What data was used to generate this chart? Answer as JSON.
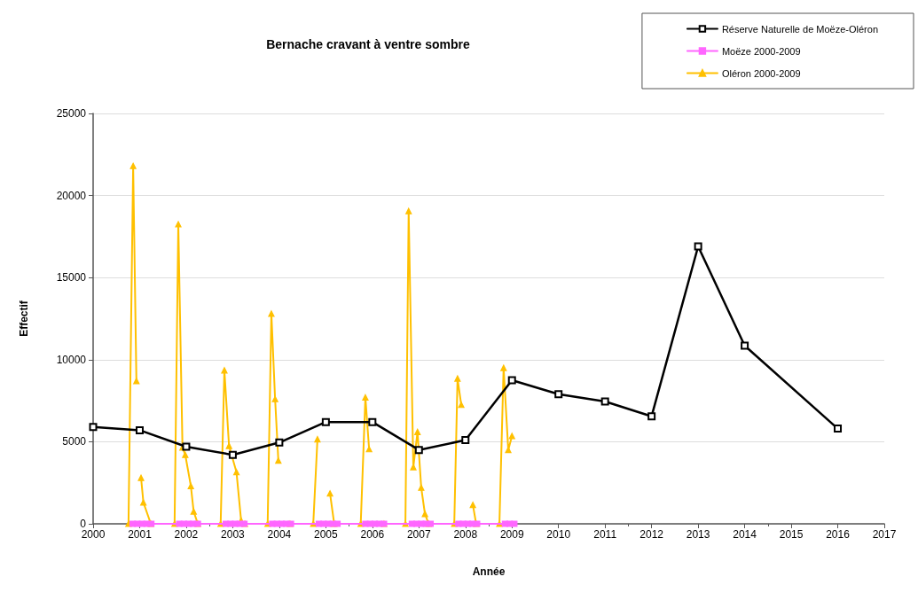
{
  "chart_data": {
    "type": "line",
    "title": "Bernache cravant à ventre sombre",
    "xlabel": "Année",
    "ylabel": "Effectif",
    "xlim": [
      2000,
      2017
    ],
    "xticks": [
      2000,
      2001,
      2002,
      2003,
      2004,
      2005,
      2006,
      2007,
      2008,
      2009,
      2010,
      2011,
      2012,
      2013,
      2014,
      2015,
      2016,
      2017
    ],
    "ylim": [
      0,
      25000
    ],
    "yticks": [
      0,
      5000,
      10000,
      15000,
      20000,
      25000
    ],
    "grid": "y",
    "legend": "top right",
    "line_style": "solid",
    "series": [
      {
        "name": "Réserve Naturelle de Moëze-Oléron",
        "color": "#000000",
        "marker": "square",
        "x": [
          2000,
          2001,
          2002,
          2003,
          2004,
          2005,
          2006,
          2007,
          2008,
          2009,
          2010,
          2011,
          2012,
          2013,
          2014,
          2016
        ],
        "values": [
          5900,
          5700,
          4700,
          4200,
          4950,
          6200,
          6200,
          4500,
          5100,
          8750,
          7900,
          7450,
          6550,
          16900,
          10850,
          5800
        ]
      },
      {
        "name": "Moëze 2000-2009",
        "color": "#ff66ff",
        "marker": "square",
        "x": [
          2000.85,
          2000.95,
          2001.05,
          2001.15,
          2001.25,
          2001.85,
          2001.95,
          2002.05,
          2002.15,
          2002.25,
          2002.85,
          2002.95,
          2003.05,
          2003.15,
          2003.25,
          2003.85,
          2003.95,
          2004.05,
          2004.15,
          2004.25,
          2004.85,
          2004.95,
          2005.05,
          2005.15,
          2005.25,
          2005.85,
          2005.95,
          2006.05,
          2006.15,
          2006.25,
          2006.85,
          2006.95,
          2007.05,
          2007.15,
          2007.25,
          2007.85,
          2007.95,
          2008.05,
          2008.15,
          2008.25,
          2008.85,
          2008.95,
          2009.05
        ],
        "values": [
          0,
          0,
          0,
          0,
          0,
          0,
          0,
          0,
          0,
          0,
          0,
          0,
          0,
          0,
          0,
          0,
          0,
          0,
          0,
          0,
          0,
          0,
          0,
          0,
          0,
          0,
          0,
          0,
          0,
          0,
          0,
          0,
          0,
          0,
          0,
          0,
          0,
          0,
          0,
          0,
          0,
          0,
          0
        ]
      },
      {
        "name": "Oléron 2000-2009",
        "color": "#ffc000",
        "marker": "triangle",
        "x": [
          2000.76,
          2000.86,
          2000.93,
          2000.98,
          2001.03,
          2001.08,
          2001.24,
          2001.75,
          2001.83,
          2001.92,
          2001.98,
          2002.1,
          2002.16,
          2002.25,
          2002.74,
          2002.82,
          2002.92,
          2003.08,
          2003.18,
          2003.26,
          2003.75,
          2003.83,
          2003.91,
          2003.98,
          2004.1,
          2004.23,
          2004.73,
          2004.82,
          2004.95,
          2005.09,
          2005.18,
          2005.75,
          2005.85,
          2005.93,
          2006.1,
          2006.25,
          2006.71,
          2006.78,
          2006.88,
          2006.97,
          2007.05,
          2007.13,
          2007.21,
          2007.76,
          2007.83,
          2007.91,
          2008.05,
          2008.16,
          2008.23,
          2008.73,
          2008.82,
          2008.92,
          2009.0
        ],
        "values": [
          0,
          21800,
          8700,
          null,
          2800,
          1300,
          0,
          0,
          18250,
          4650,
          4200,
          2300,
          750,
          0,
          0,
          9350,
          4750,
          3150,
          200,
          0,
          0,
          12800,
          7600,
          3850,
          null,
          0,
          0,
          5150,
          null,
          1850,
          0,
          0,
          7700,
          4550,
          null,
          0,
          0,
          19050,
          3450,
          5600,
          2200,
          600,
          0,
          0,
          8850,
          7250,
          null,
          1150,
          0,
          0,
          9500,
          4500,
          5350
        ]
      }
    ]
  }
}
